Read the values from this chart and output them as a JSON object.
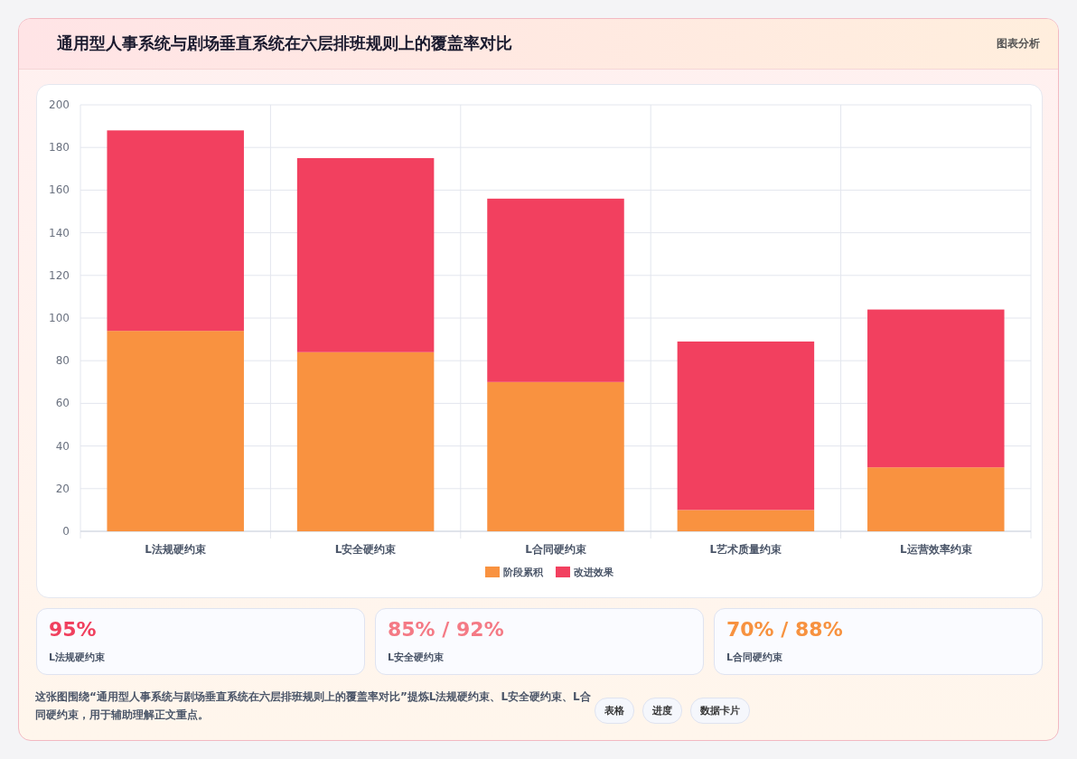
{
  "chart_data": {
    "type": "bar",
    "title": "通用型人事系统与剧场垂直系统在六层排班规则上的覆盖率对比",
    "categories": [
      "L法规硬约束",
      "L安全硬约束",
      "L合同硬约束",
      "L艺术质量约束",
      "L运营效率约束"
    ],
    "series": [
      {
        "name": "阶段累积",
        "color": "#f99240",
        "values": [
          94,
          84,
          70,
          10,
          30
        ]
      },
      {
        "name": "改进效果",
        "color": "#f2405f",
        "values": [
          94,
          91,
          86,
          79,
          74
        ]
      }
    ],
    "stacked": true,
    "ylim": [
      0,
      200
    ],
    "yticks": [
      0,
      20,
      40,
      60,
      80,
      100,
      120,
      140,
      160,
      180,
      200
    ],
    "grid": true,
    "legend": "bottom",
    "annotations": [
      "图表分析",
      "95%",
      "L法规硬约束",
      "85% / 92%",
      "L安全硬约束",
      "70% / 88%",
      "L合同硬约束",
      "这张图围绕“通用型人事系统与剧场垂直系统在六层排班规则上的覆盖率对比”提炼L法规硬约束、L安全硬约束、L合同硬约束，用于辅助理解正文重点。",
      "表格",
      "进度",
      "数据卡片"
    ]
  }
}
